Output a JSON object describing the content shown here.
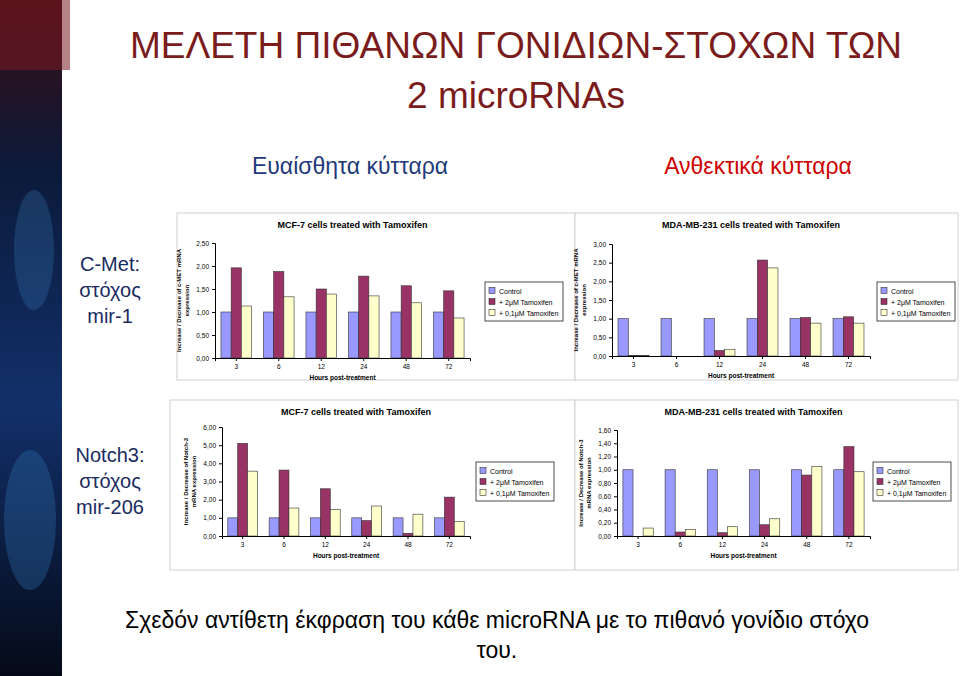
{
  "slide": {
    "title": [
      "ΜΕΛΕΤΗ ΠΙΘΑΝΩΝ ΓΟΝΙΔΙΩΝ-ΣΤΟΧΩΝ ΤΩΝ",
      "2 microRNAs"
    ],
    "column_headers": [
      "Ευαίσθητα κύτταρα",
      "Ανθεκτικά κύτταρα"
    ],
    "row_labels": [
      [
        "C-Met:",
        "στόχος",
        "mir-1"
      ],
      [
        "Notch3:",
        "στόχος",
        "mir-206"
      ]
    ],
    "footer": [
      "Σχεδόν αντίθετη έκφραση του κάθε microRNA με το πιθανό γονίδιο στόχο",
      "του."
    ]
  },
  "chart_data": [
    {
      "type": "bar",
      "title": "MCF-7 cells treated with Tamoxifen",
      "x_label": "Hours post-treatment",
      "y_label": [
        "Increase / Decrease of c-MET mRNA",
        "expression"
      ],
      "categories": [
        "3",
        "6",
        "12",
        "24",
        "48",
        "72"
      ],
      "series": [
        {
          "name": "Control",
          "color": "#9999ff",
          "values": [
            1,
            1,
            1,
            1,
            1,
            1
          ]
        },
        {
          "name": "+ 2μM Tamoxifen",
          "color": "#993366",
          "values": [
            1.96,
            1.88,
            1.5,
            1.78,
            1.57,
            1.46
          ]
        },
        {
          "name": "+ 0,1μM Tamoxifen",
          "color": "#ffffcc",
          "values": [
            1.13,
            1.33,
            1.39,
            1.35,
            1.2,
            0.87
          ]
        }
      ],
      "ylim": [
        0,
        2.5
      ],
      "yticks": [
        {
          "value": 0,
          "label": "0,00"
        },
        {
          "value": 0.5,
          "label": "0,50"
        },
        {
          "value": 1,
          "label": "1,00"
        },
        {
          "value": 1.5,
          "label": "1,50"
        },
        {
          "value": 2,
          "label": "2,00"
        },
        {
          "value": 2.5,
          "label": "2,50"
        }
      ],
      "grid": false,
      "legend": "right"
    },
    {
      "type": "bar",
      "title": "MDA-MB-231 cells treated with Tamoxifen",
      "x_label": "Hours post-treatment",
      "y_label": [
        "Increase / Decrease of c-MET mRNA",
        "expression"
      ],
      "categories": [
        "3",
        "6",
        "12",
        "24",
        "48",
        "72"
      ],
      "series": [
        {
          "name": "Control",
          "color": "#9999ff",
          "values": [
            1,
            1,
            1,
            1,
            1,
            1
          ]
        },
        {
          "name": "+ 2μM Tamoxifen",
          "color": "#993366",
          "values": [
            0.01,
            0,
            0.15,
            2.57,
            1.03,
            1.05
          ]
        },
        {
          "name": "+ 0,1μM Tamoxifen",
          "color": "#ffffcc",
          "values": [
            0.01,
            0,
            0.18,
            2.36,
            0.88,
            0.88
          ]
        }
      ],
      "ylim": [
        0,
        3
      ],
      "yticks": [
        {
          "value": 0,
          "label": "0,00"
        },
        {
          "value": 0.5,
          "label": "0,50"
        },
        {
          "value": 1,
          "label": "1,00"
        },
        {
          "value": 1.5,
          "label": "1,50"
        },
        {
          "value": 2,
          "label": "2,00"
        },
        {
          "value": 2.5,
          "label": "2,50"
        },
        {
          "value": 3,
          "label": "3,00"
        }
      ],
      "grid": false,
      "legend": "right"
    },
    {
      "type": "bar",
      "title": "MCF-7 cells treated with Tamoxifen",
      "x_label": "Hours post-treatment",
      "y_label": [
        "Increase / Decrease of Notch-3",
        "mRNA expression"
      ],
      "categories": [
        "3",
        "6",
        "12",
        "24",
        "48",
        "72"
      ],
      "series": [
        {
          "name": "Control",
          "color": "#9999ff",
          "values": [
            1,
            1,
            1,
            1,
            1,
            1
          ]
        },
        {
          "name": "+ 2μM Tamoxifen",
          "color": "#993366",
          "values": [
            5.1,
            3.63,
            2.6,
            0.85,
            0.15,
            2.14
          ]
        },
        {
          "name": "+ 0,1μM Tamoxifen",
          "color": "#ffffcc",
          "values": [
            3.57,
            1.54,
            1.45,
            1.65,
            1.2,
            0.8
          ]
        }
      ],
      "ylim": [
        0,
        6
      ],
      "yticks": [
        {
          "value": 0,
          "label": "0,00"
        },
        {
          "value": 1,
          "label": "1,00"
        },
        {
          "value": 2,
          "label": "2,00"
        },
        {
          "value": 3,
          "label": "3,00"
        },
        {
          "value": 4,
          "label": "4,00"
        },
        {
          "value": 5,
          "label": "5,00"
        },
        {
          "value": 6,
          "label": "6,00"
        }
      ],
      "grid": false,
      "legend": "right"
    },
    {
      "type": "bar",
      "title": "MDA-MB-231 cells treated with Tamoxifen",
      "x_label": "Hours post-treatment",
      "y_label": [
        "Increase / Decrease of Notch-3",
        "mRNA expression"
      ],
      "categories": [
        "3",
        "6",
        "12",
        "24",
        "48",
        "72"
      ],
      "series": [
        {
          "name": "Control",
          "color": "#9999ff",
          "values": [
            1,
            1,
            1,
            1,
            1,
            1
          ]
        },
        {
          "name": "+ 2μM Tamoxifen",
          "color": "#993366",
          "values": [
            0,
            0.06,
            0.05,
            0.17,
            0.92,
            1.35
          ]
        },
        {
          "name": "+ 0,1μM Tamoxifen",
          "color": "#ffffcc",
          "values": [
            0.12,
            0.1,
            0.14,
            0.26,
            1.05,
            0.97
          ]
        }
      ],
      "ylim": [
        0,
        1.6
      ],
      "yticks": [
        {
          "value": 0,
          "label": "0,00"
        },
        {
          "value": 0.2,
          "label": "0,20"
        },
        {
          "value": 0.4,
          "label": "0,40"
        },
        {
          "value": 0.6,
          "label": "0,60"
        },
        {
          "value": 0.8,
          "label": "0,80"
        },
        {
          "value": 1,
          "label": "1,00"
        },
        {
          "value": 1.2,
          "label": "1,20"
        },
        {
          "value": 1.4,
          "label": "1,40"
        },
        {
          "value": 1.6,
          "label": "1,60"
        }
      ],
      "grid": false,
      "legend": "right"
    }
  ]
}
